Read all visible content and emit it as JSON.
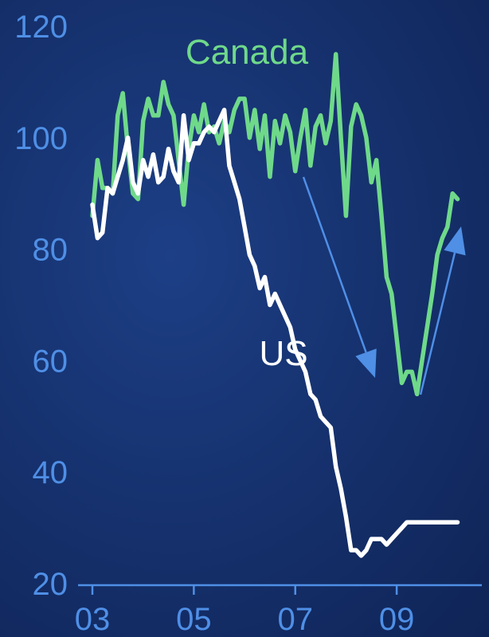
{
  "chart_data": {
    "type": "line",
    "title": "",
    "xlabel": "",
    "ylabel": "",
    "ylim": [
      20,
      120
    ],
    "xlim": [
      2003,
      2010.6
    ],
    "y_ticks": [
      {
        "value": 20,
        "label": "20"
      },
      {
        "value": 40,
        "label": "40"
      },
      {
        "value": 60,
        "label": "60"
      },
      {
        "value": 80,
        "label": "80"
      },
      {
        "value": 100,
        "label": "100"
      },
      {
        "value": 120,
        "label": "120"
      }
    ],
    "x_ticks": [
      {
        "value": 2003,
        "label": "03"
      },
      {
        "value": 2005,
        "label": "05"
      },
      {
        "value": 2007,
        "label": "07"
      },
      {
        "value": 2009,
        "label": "09"
      }
    ],
    "grid": false,
    "series": [
      {
        "name": "Canada",
        "color": "#6fd98a",
        "x": [
          2003.0,
          2003.1,
          2003.2,
          2003.3,
          2003.4,
          2003.5,
          2003.6,
          2003.7,
          2003.8,
          2003.9,
          2004.0,
          2004.1,
          2004.2,
          2004.3,
          2004.4,
          2004.5,
          2004.6,
          2004.7,
          2004.8,
          2004.9,
          2005.0,
          2005.1,
          2005.2,
          2005.3,
          2005.4,
          2005.5,
          2005.6,
          2005.7,
          2005.8,
          2005.9,
          2006.0,
          2006.1,
          2006.2,
          2006.3,
          2006.4,
          2006.5,
          2006.6,
          2006.7,
          2006.8,
          2006.9,
          2007.0,
          2007.1,
          2007.2,
          2007.3,
          2007.4,
          2007.5,
          2007.6,
          2007.7,
          2007.8,
          2007.9,
          2008.0,
          2008.1,
          2008.2,
          2008.3,
          2008.4,
          2008.5,
          2008.6,
          2008.7,
          2008.8,
          2008.9,
          2009.0,
          2009.1,
          2009.2,
          2009.3,
          2009.4,
          2009.5,
          2009.6,
          2009.7,
          2009.8,
          2009.9,
          2010.0,
          2010.1,
          2010.2
        ],
        "values": [
          86,
          96,
          91,
          91,
          90,
          104,
          108,
          98,
          90,
          89,
          103,
          107,
          104,
          104,
          110,
          106,
          104,
          96,
          88,
          98,
          104,
          101,
          106,
          101,
          102,
          99,
          103,
          101,
          105,
          107,
          107,
          100,
          105,
          98,
          104,
          93,
          103,
          99,
          104,
          101,
          94,
          100,
          105,
          95,
          102,
          104,
          99,
          103,
          115,
          100,
          86,
          102,
          106,
          104,
          100,
          92,
          96,
          86,
          75,
          72,
          64,
          56,
          58,
          58,
          54,
          60,
          66,
          72,
          79,
          82,
          84,
          90,
          89
        ]
      },
      {
        "name": "US",
        "color": "#ffffff",
        "x": [
          2003.0,
          2003.1,
          2003.2,
          2003.3,
          2003.4,
          2003.5,
          2003.6,
          2003.7,
          2003.8,
          2003.9,
          2004.0,
          2004.1,
          2004.2,
          2004.3,
          2004.4,
          2004.5,
          2004.6,
          2004.7,
          2004.8,
          2004.9,
          2005.0,
          2005.1,
          2005.2,
          2005.3,
          2005.4,
          2005.5,
          2005.6,
          2005.7,
          2005.8,
          2005.9,
          2006.0,
          2006.1,
          2006.2,
          2006.3,
          2006.4,
          2006.5,
          2006.6,
          2006.7,
          2006.8,
          2006.9,
          2007.0,
          2007.1,
          2007.2,
          2007.3,
          2007.4,
          2007.5,
          2007.6,
          2007.7,
          2007.8,
          2007.9,
          2008.0,
          2008.1,
          2008.2,
          2008.3,
          2008.4,
          2008.5,
          2008.6,
          2008.7,
          2008.8,
          2008.9,
          2009.0,
          2009.1,
          2009.2,
          2009.3,
          2009.4,
          2009.5,
          2009.6,
          2009.7,
          2009.8,
          2009.9,
          2010.0,
          2010.1,
          2010.2
        ],
        "values": [
          88,
          82,
          83,
          91,
          90,
          93,
          96,
          100,
          92,
          90,
          96,
          93,
          97,
          92,
          93,
          98,
          94,
          92,
          104,
          96,
          99,
          99,
          101,
          102,
          101,
          103,
          105,
          95,
          92,
          89,
          84,
          79,
          77,
          73,
          75,
          70,
          72,
          70,
          68,
          66,
          62,
          60,
          58,
          54,
          53,
          50,
          49,
          48,
          41,
          37,
          32,
          26,
          26,
          25,
          26,
          28,
          28,
          28,
          27,
          28,
          29,
          30,
          31,
          31,
          31,
          31,
          31,
          31,
          31,
          31,
          31,
          31,
          31
        ]
      }
    ],
    "annotations": [
      {
        "type": "arrow",
        "direction": "down",
        "color": "#4f8fe6"
      },
      {
        "type": "arrow",
        "direction": "up",
        "color": "#4f8fe6"
      }
    ]
  }
}
